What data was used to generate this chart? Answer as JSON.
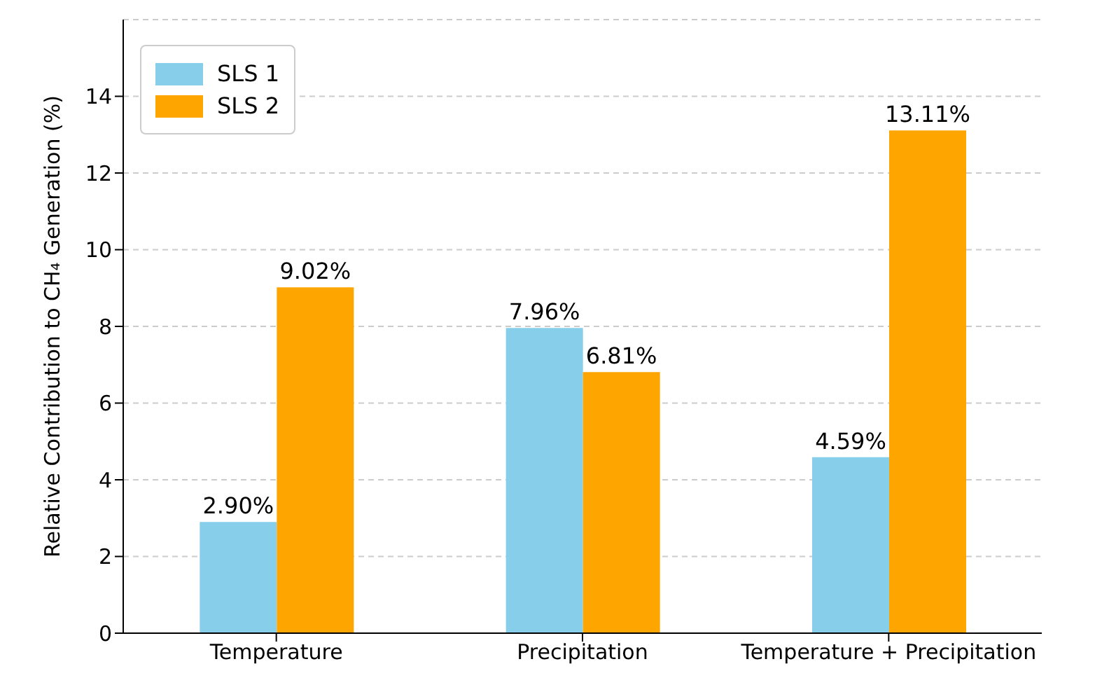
{
  "chart_data": {
    "type": "bar",
    "ylabel": "Relative Contribution to CH₄ Generation (%)",
    "categories": [
      "Temperature",
      "Precipitation",
      "Temperature + Precipitation"
    ],
    "series": [
      {
        "name": "SLS 1",
        "color": "#87ceeb",
        "values": [
          2.9,
          7.96,
          4.59
        ],
        "value_labels": [
          "2.90%",
          "7.96%",
          "4.59%"
        ]
      },
      {
        "name": "SLS 2",
        "color": "#ffa500",
        "values": [
          9.02,
          6.81,
          13.11
        ],
        "value_labels": [
          "9.02%",
          "6.81%",
          "13.11%"
        ]
      }
    ],
    "ylim": [
      0,
      16
    ],
    "yticks": [
      0,
      2,
      4,
      6,
      8,
      10,
      12,
      14
    ],
    "grid": "y",
    "legend": "top left"
  }
}
